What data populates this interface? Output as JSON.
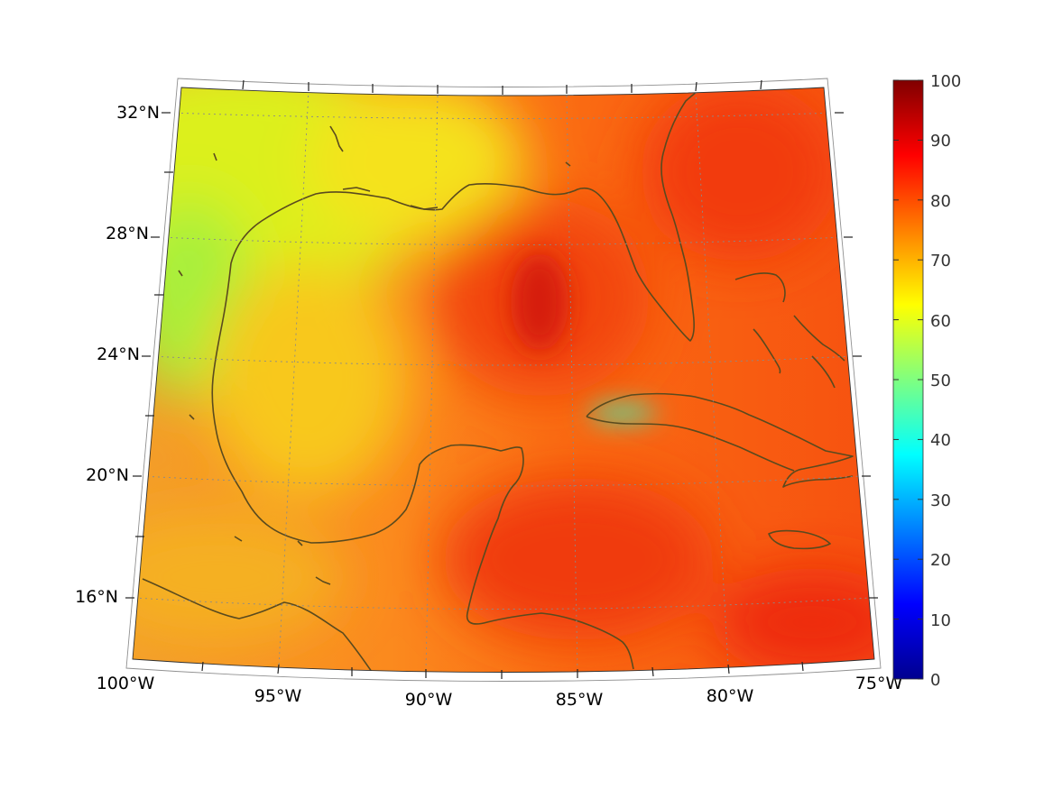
{
  "map": {
    "lat_labels": [
      "32°N",
      "28°N",
      "24°N",
      "20°N",
      "16°N"
    ],
    "lon_labels": [
      "100°W",
      "95°W",
      "90°W",
      "85°W",
      "80°W",
      "75°W"
    ],
    "coastline_color": "#5a4a1e",
    "grid_color": "#8a8a8a"
  },
  "colorbar": {
    "tick_labels": [
      "100",
      "90",
      "80",
      "70",
      "60",
      "50",
      "40",
      "30",
      "20",
      "10",
      "0"
    ],
    "range": [
      0,
      100
    ],
    "colormap": "jet"
  }
}
